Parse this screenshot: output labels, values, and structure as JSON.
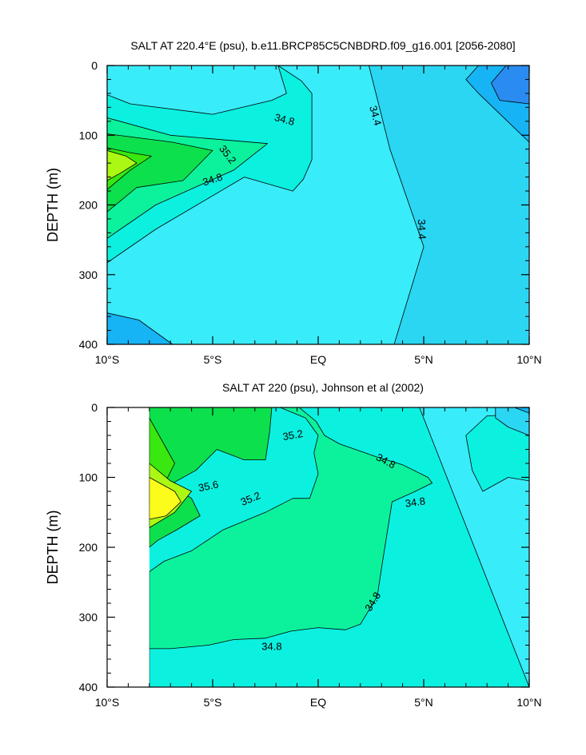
{
  "palette": {
    "c34_0": "#2a8cf0",
    "c34_2": "#16b4f4",
    "c34_4": "#2ad6f2",
    "c34_6": "#39ecfa",
    "c34_8": "#0cf0e0",
    "c35_0": "#0cf29c",
    "c35_2": "#0ce04c",
    "c35_4": "#38e810",
    "c35_6": "#aaf814",
    "c35_8": "#fcfc1c",
    "c36_0": "#fcc036",
    "line": "#000000"
  },
  "chart_data": [
    {
      "type": "contour",
      "title": "SALT AT 220.4°E (psu), b.e11.BRCP85C5CNBDRD.f09_g16.001 [2056-2080]",
      "ylabel": "DEPTH (m)",
      "xlabel": "",
      "xlim": [
        -10,
        10
      ],
      "ylim": [
        400,
        0
      ],
      "y_inverted": true,
      "x_ticks": [
        -10,
        -5,
        0,
        5,
        10
      ],
      "x_tick_labels": [
        "10°S",
        "5°S",
        "EQ",
        "5°N",
        "10°N"
      ],
      "y_ticks": [
        0,
        100,
        200,
        300,
        400
      ],
      "y_tick_labels": [
        "0",
        "100",
        "200",
        "300",
        "400"
      ],
      "contour_interval": 0.2,
      "background_level": 34.6,
      "regions": [
        {
          "level": 34.4,
          "points": [
            [
              5.2,
              0
            ],
            [
              10,
              0
            ],
            [
              10,
              400
            ],
            [
              3.6,
              400
            ],
            [
              5,
              260
            ],
            [
              3.4,
              120
            ],
            [
              2.4,
              0
            ]
          ]
        },
        {
          "level": 34.2,
          "points": [
            [
              7.6,
              0
            ],
            [
              10,
              0
            ],
            [
              10,
              110
            ],
            [
              8.8,
              75
            ],
            [
              7.6,
              40
            ],
            [
              7,
              20
            ],
            [
              7.6,
              0
            ]
          ]
        },
        {
          "level": 34.2,
          "points": [
            [
              -10,
              355
            ],
            [
              -8.5,
              365
            ],
            [
              -6.9,
              400
            ],
            [
              -10,
              400
            ]
          ]
        },
        {
          "level": 34.0,
          "points": [
            [
              8.9,
              0
            ],
            [
              10,
              0
            ],
            [
              10,
              55
            ],
            [
              8.6,
              50
            ],
            [
              8.2,
              25
            ],
            [
              8.9,
              0
            ]
          ]
        },
        {
          "level": 34.8,
          "points": [
            [
              -10,
              42
            ],
            [
              -8.9,
              55
            ],
            [
              -5,
              70
            ],
            [
              -2.2,
              50
            ],
            [
              -1.5,
              40
            ],
            [
              -1.9,
              0
            ],
            [
              -0.8,
              22
            ],
            [
              -0.3,
              40
            ],
            [
              -0.3,
              135
            ],
            [
              -0.7,
              163
            ],
            [
              -1.2,
              180
            ],
            [
              -3.5,
              160
            ],
            [
              -7.7,
              235
            ],
            [
              -10,
              283
            ]
          ]
        },
        {
          "level": 35.0,
          "points": [
            [
              -10,
              75
            ],
            [
              -7,
              100
            ],
            [
              -2.4,
              112
            ],
            [
              -4,
              150
            ],
            [
              -7.7,
              200
            ],
            [
              -10,
              248
            ]
          ]
        },
        {
          "level": 35.2,
          "points": [
            [
              -10,
              98
            ],
            [
              -6.9,
              110
            ],
            [
              -5,
              122
            ],
            [
              -6.4,
              165
            ],
            [
              -8.6,
              175
            ],
            [
              -10,
              210
            ]
          ]
        },
        {
          "level": 35.4,
          "points": [
            [
              -10,
              118
            ],
            [
              -8.9,
              125
            ],
            [
              -7.9,
              130
            ],
            [
              -8.9,
              150
            ],
            [
              -10,
              178
            ]
          ]
        },
        {
          "level": 35.6,
          "points": [
            [
              -10,
              122
            ],
            [
              -9.1,
              130
            ],
            [
              -8.6,
              140
            ],
            [
              -9.4,
              155
            ],
            [
              -10,
              165
            ]
          ]
        }
      ],
      "contour_labels": [
        {
          "x": -1.6,
          "y": 78,
          "text": "34.8",
          "angle": 15
        },
        {
          "x": -4.3,
          "y": 128,
          "text": "35.2",
          "angle": 52
        },
        {
          "x": -5.0,
          "y": 164,
          "text": "34.8",
          "angle": -18
        },
        {
          "x": 2.7,
          "y": 72,
          "text": "34.4",
          "angle": 74
        },
        {
          "x": 4.9,
          "y": 235,
          "text": "34.4",
          "angle": 88
        }
      ]
    },
    {
      "type": "contour",
      "title": "SALT AT 220 (psu), Johnson et al (2002)",
      "ylabel": "DEPTH (m)",
      "xlabel": "",
      "xlim": [
        -10,
        10
      ],
      "ylim": [
        400,
        0
      ],
      "y_inverted": true,
      "data_xlim": [
        -8,
        10
      ],
      "x_ticks": [
        -10,
        -5,
        0,
        5,
        10
      ],
      "x_tick_labels": [
        "10°S",
        "5°S",
        "EQ",
        "5°N",
        "10°N"
      ],
      "y_ticks": [
        0,
        100,
        200,
        300,
        400
      ],
      "y_tick_labels": [
        "0",
        "100",
        "200",
        "300",
        "400"
      ],
      "contour_interval": 0.2,
      "background_level": 34.8,
      "regions": [
        {
          "level": 35.0,
          "points": [
            [
              -8,
              0
            ],
            [
              -1.8,
              0
            ],
            [
              -0.6,
              15
            ],
            [
              0,
              40
            ],
            [
              -0.2,
              65
            ],
            [
              0,
              95
            ],
            [
              -0.4,
              130
            ],
            [
              -1.2,
              130
            ],
            [
              -2.5,
              150
            ],
            [
              -4.5,
              175
            ],
            [
              -6,
              205
            ],
            [
              -7.3,
              220
            ],
            [
              -8,
              235
            ],
            [
              -8,
              400
            ],
            [
              -8,
              345
            ],
            [
              -7,
              345
            ],
            [
              -5.2,
              340
            ],
            [
              -4,
              332
            ],
            [
              -2.5,
              330
            ],
            [
              -1.3,
              320
            ],
            [
              0,
              315
            ],
            [
              1.3,
              318
            ],
            [
              2,
              310
            ],
            [
              2.8,
              270
            ],
            [
              3,
              230
            ],
            [
              3.5,
              135
            ],
            [
              4.6,
              120
            ],
            [
              5.4,
              108
            ],
            [
              5.2,
              100
            ],
            [
              4,
              82
            ],
            [
              2.7,
              70
            ],
            [
              1,
              52
            ],
            [
              0.3,
              40
            ],
            [
              -0.1,
              20
            ],
            [
              -0.9,
              0
            ]
          ]
        },
        {
          "level": 35.2,
          "points": [
            [
              -8,
              0
            ],
            [
              -2.2,
              0
            ],
            [
              -2.3,
              35
            ],
            [
              -2.5,
              75
            ],
            [
              -3.5,
              75
            ],
            [
              -4.8,
              60
            ],
            [
              -5.8,
              90
            ],
            [
              -7,
              110
            ],
            [
              -6,
              130
            ],
            [
              -5.6,
              155
            ],
            [
              -6.7,
              175
            ],
            [
              -7.6,
              190
            ],
            [
              -8,
              200
            ]
          ]
        },
        {
          "level": 35.4,
          "points": [
            [
              -8,
              15
            ],
            [
              -6.8,
              80
            ],
            [
              -7.3,
              110
            ],
            [
              -7.4,
              120
            ],
            [
              -8,
              140
            ]
          ]
        },
        {
          "level": 35.6,
          "points": [
            [
              -8,
              80
            ],
            [
              -7,
              105
            ],
            [
              -6,
              120
            ],
            [
              -6.8,
              150
            ],
            [
              -8,
              172
            ]
          ]
        },
        {
          "level": 35.8,
          "points": [
            [
              -8,
              100
            ],
            [
              -6.8,
              120
            ],
            [
              -6.5,
              135
            ],
            [
              -7.2,
              155
            ],
            [
              -8,
              160
            ]
          ]
        },
        {
          "level": 34.6,
          "points": [
            [
              4.8,
              0
            ],
            [
              10,
              0
            ],
            [
              10,
              10
            ],
            [
              8,
              12
            ],
            [
              7,
              40
            ],
            [
              7.3,
              90
            ],
            [
              7.8,
              120
            ],
            [
              9,
              100
            ],
            [
              10,
              105
            ],
            [
              10,
              400
            ]
          ]
        },
        {
          "level": 34.4,
          "points": [
            [
              8.4,
              0
            ],
            [
              10,
              0
            ],
            [
              10,
              40
            ],
            [
              9,
              28
            ],
            [
              8.4,
              15
            ]
          ]
        },
        {
          "level": 34.2,
          "points": [
            [
              9.3,
              0
            ],
            [
              10,
              0
            ],
            [
              10,
              8
            ]
          ]
        }
      ],
      "contour_labels": [
        {
          "x": -1.2,
          "y": 40,
          "text": "35.2",
          "angle": -10
        },
        {
          "x": -5.2,
          "y": 113,
          "text": "35.6",
          "angle": -12
        },
        {
          "x": -3.2,
          "y": 131,
          "text": "35.2",
          "angle": -22
        },
        {
          "x": 3.2,
          "y": 77,
          "text": "34.8",
          "angle": 28
        },
        {
          "x": 4.6,
          "y": 136,
          "text": "34.8",
          "angle": -8
        },
        {
          "x": 2.6,
          "y": 278,
          "text": "34.8",
          "angle": -58
        },
        {
          "x": -2.2,
          "y": 342,
          "text": "34.8",
          "angle": 0
        }
      ]
    }
  ]
}
